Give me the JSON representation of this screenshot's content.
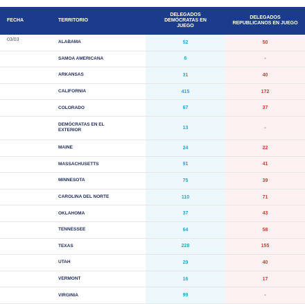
{
  "header": [
    "FECHA",
    "TERRITORIO",
    "DELEGADOS DEMÓCRATAS EN JUEGO",
    "DELEGADOS REPUBLICANOS EN JUEGO"
  ],
  "date": "03/03",
  "rows": [
    [
      "ALABAMA",
      52,
      50
    ],
    [
      "SAMOA AMERICANA",
      6,
      "-"
    ],
    [
      "ARKANSAS",
      31,
      40
    ],
    [
      "CALIFORNIA",
      415,
      172
    ],
    [
      "COLORADO",
      67,
      37
    ],
    [
      "DEMÓCRATAS EN EL EXTERIOR",
      13,
      "-"
    ],
    [
      "MAINE",
      24,
      22
    ],
    [
      "MASSACHUSETTS",
      91,
      41
    ],
    [
      "MINNESOTA",
      75,
      39
    ],
    [
      "CAROLINA DEL NORTE",
      110,
      71
    ],
    [
      "OKLAHOMA",
      37,
      43
    ],
    [
      "TENNESSEE",
      64,
      58
    ],
    [
      "TEXAS",
      228,
      155
    ],
    [
      "UTAH",
      29,
      40
    ],
    [
      "VERMONT",
      16,
      17
    ],
    [
      "VIRGINIA",
      99,
      "-"
    ]
  ]
}
